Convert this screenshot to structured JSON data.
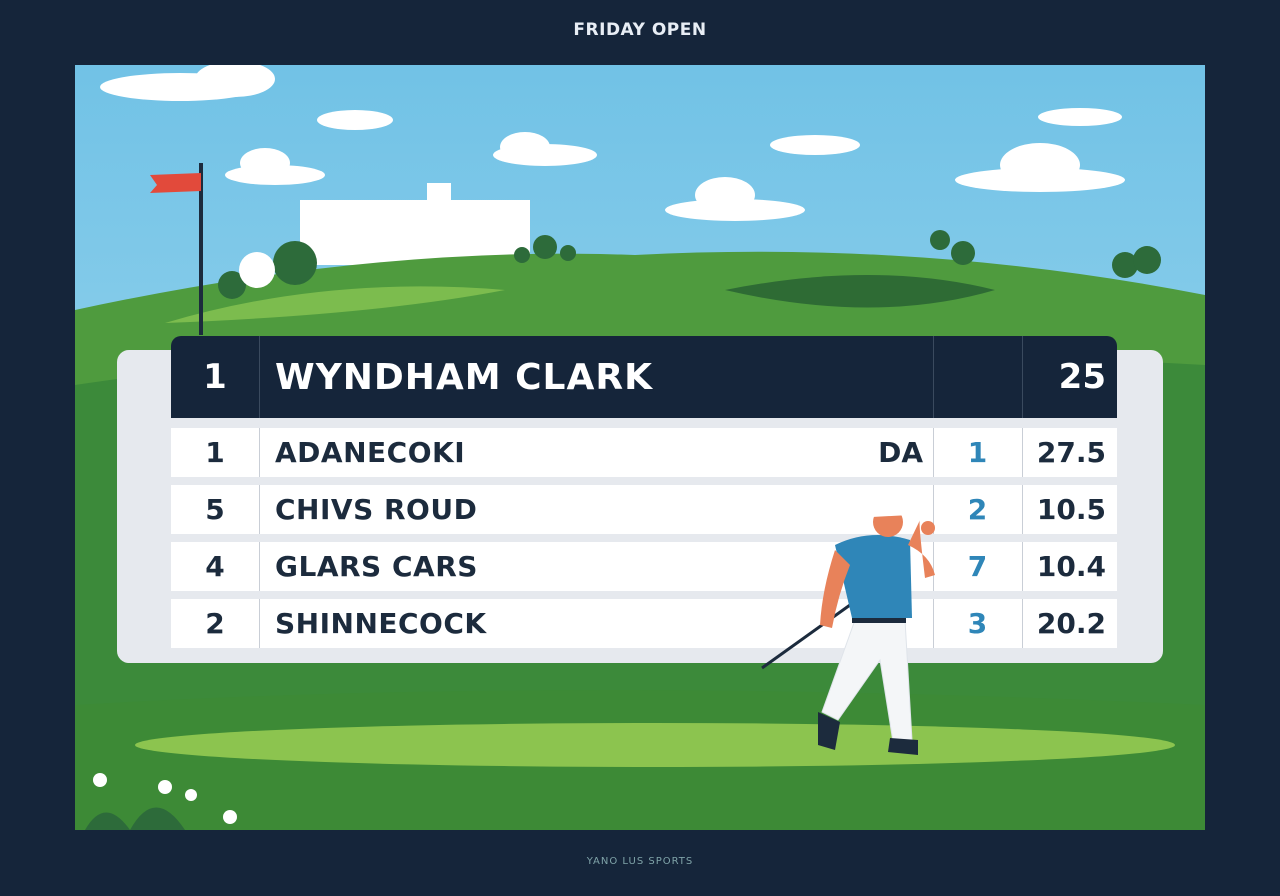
{
  "header": {
    "title": "FRIDAY OPEN"
  },
  "leader": {
    "position": "1",
    "name": "WYNDHAM CLARK",
    "score": "25"
  },
  "rows": [
    {
      "position": "1",
      "name": "ADANECOKI",
      "tag": "DA",
      "rank": "1",
      "score": "27.5"
    },
    {
      "position": "5",
      "name": "CHIVS ROUD",
      "rank": "2",
      "score": "10.5"
    },
    {
      "position": "4",
      "name": "GLARS CARS",
      "rank": "7",
      "score": "10.4"
    },
    {
      "position": "2",
      "name": "SHINNECOCK",
      "rank": "3",
      "score": "20.2"
    }
  ],
  "footer": {
    "brand": "YANO LUS SPORTS"
  }
}
